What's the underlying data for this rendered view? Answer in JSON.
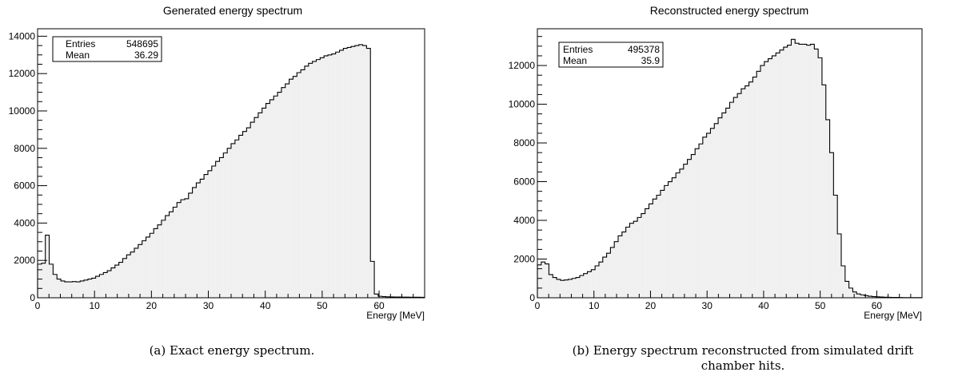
{
  "charts": [
    {
      "title": "Generated energy spectrum",
      "caption": "(a) Exact energy spectrum.",
      "stats": {
        "entries_label": "Entries",
        "entries_value": "548695",
        "mean_label": "Mean",
        "mean_value": "36.29"
      }
    },
    {
      "title": "Reconstructed energy spectrum",
      "caption_line1": "(b) Energy spectrum reconstructed from simulated drift",
      "caption_line2": "chamber hits.",
      "stats": {
        "entries_label": "Entries",
        "entries_value": "495378",
        "mean_label": "Mean",
        "mean_value": "35.9"
      }
    }
  ],
  "colors": {
    "fill": "#f0f0f0",
    "line": "#000000"
  },
  "chart_data": [
    {
      "type": "area",
      "title": "Generated energy spectrum",
      "xlabel": "Energy [MeV]",
      "ylabel": "",
      "xlim": [
        0,
        68
      ],
      "ylim": [
        0,
        14400
      ],
      "xticks": [
        0,
        10,
        20,
        30,
        40,
        50,
        60
      ],
      "yticks": [
        0,
        2000,
        4000,
        6000,
        8000,
        10000,
        12000,
        14000
      ],
      "bin_width": 0.68,
      "values": [
        1800,
        1850,
        3350,
        1800,
        1250,
        1000,
        900,
        850,
        850,
        870,
        850,
        900,
        950,
        1000,
        1050,
        1150,
        1250,
        1350,
        1450,
        1600,
        1750,
        1900,
        2100,
        2300,
        2450,
        2650,
        2850,
        3050,
        3250,
        3450,
        3700,
        3900,
        4150,
        4400,
        4600,
        4850,
        5100,
        5250,
        5300,
        5600,
        5900,
        6150,
        6350,
        6600,
        6800,
        7050,
        7300,
        7500,
        7750,
        8000,
        8250,
        8450,
        8700,
        8900,
        9100,
        9400,
        9650,
        9900,
        10150,
        10400,
        10600,
        10800,
        11000,
        11250,
        11450,
        11700,
        11850,
        12050,
        12200,
        12400,
        12550,
        12650,
        12750,
        12850,
        12950,
        13000,
        13050,
        13150,
        13250,
        13350,
        13400,
        13450,
        13500,
        13550,
        13500,
        13350,
        1950,
        200,
        80,
        60,
        50,
        45,
        40,
        38,
        35,
        35,
        30,
        30,
        28,
        25
      ]
    },
    {
      "type": "area",
      "title": "Reconstructed energy spectrum",
      "xlabel": "Energy [MeV]",
      "ylabel": "",
      "xlim": [
        0,
        68
      ],
      "ylim": [
        0,
        13900
      ],
      "xticks": [
        0,
        10,
        20,
        30,
        40,
        50,
        60
      ],
      "yticks": [
        0,
        2000,
        4000,
        6000,
        8000,
        10000,
        12000
      ],
      "bin_width": 0.68,
      "values": [
        1700,
        1850,
        1750,
        1200,
        1050,
        950,
        900,
        920,
        950,
        1000,
        1050,
        1150,
        1250,
        1350,
        1450,
        1650,
        1850,
        2100,
        2300,
        2600,
        2900,
        3200,
        3400,
        3650,
        3850,
        3950,
        4150,
        4350,
        4600,
        4850,
        5100,
        5300,
        5550,
        5800,
        6000,
        6200,
        6450,
        6650,
        6900,
        7150,
        7400,
        7700,
        7950,
        8300,
        8500,
        8750,
        9000,
        9300,
        9550,
        9800,
        10100,
        10350,
        10550,
        10800,
        10950,
        11150,
        11400,
        11700,
        12000,
        12200,
        12350,
        12500,
        12650,
        12800,
        12950,
        13050,
        13350,
        13150,
        13100,
        13100,
        13050,
        13100,
        12850,
        12400,
        11000,
        9200,
        7500,
        5300,
        3300,
        1650,
        850,
        500,
        300,
        200,
        150,
        110,
        80,
        60,
        50,
        40,
        30,
        25,
        20,
        20,
        15,
        10,
        10,
        10,
        10,
        10
      ]
    }
  ]
}
